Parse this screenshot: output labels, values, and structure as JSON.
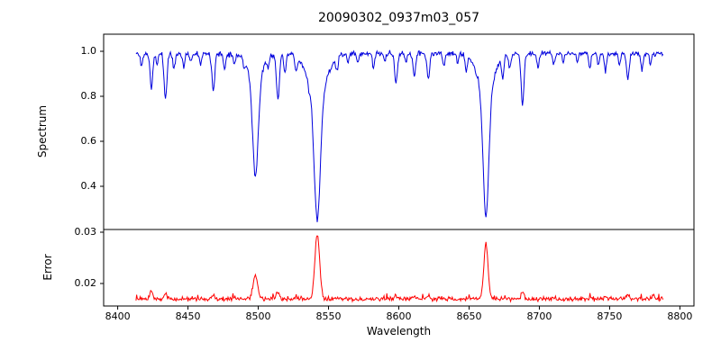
{
  "figure": {
    "background": "#ffffff",
    "frame_color": "#000000"
  },
  "chart_data": {
    "type": "line",
    "title": "20090302_0937m03_057",
    "xlabel": "Wavelength",
    "x_axis": {
      "lim": [
        8390,
        8810
      ],
      "ticks": [
        8400,
        8450,
        8500,
        8550,
        8600,
        8650,
        8700,
        8750,
        8800
      ],
      "tick_labels": [
        "8400",
        "8450",
        "8500",
        "8550",
        "8600",
        "8650",
        "8700",
        "8750",
        "8800"
      ]
    },
    "x_range": [
      8413,
      8788
    ],
    "x_step": 0.5,
    "features_format": [
      "center_wavelength",
      "amplitude",
      "sigma"
    ],
    "panels": [
      {
        "id": "spectrum",
        "ylabel": "Spectrum",
        "color": "#0000dd",
        "ylim": [
          0.208,
          1.076
        ],
        "yticks": [
          0.4,
          0.6,
          0.8,
          1.0
        ],
        "ytick_labels": [
          "0.4",
          "0.6",
          "0.8",
          "1.0"
        ],
        "base": 0.99,
        "noise": 0.01,
        "seed": 11,
        "spike_prob": 0,
        "spike_amp": 0,
        "features": [
          [
            8417,
            -0.055,
            0.8
          ],
          [
            8424,
            -0.15,
            1.0
          ],
          [
            8428,
            -0.05,
            0.7
          ],
          [
            8434,
            -0.2,
            1.0
          ],
          [
            8440,
            -0.07,
            0.8
          ],
          [
            8447,
            -0.06,
            0.8
          ],
          [
            8452,
            -0.04,
            0.7
          ],
          [
            8459,
            -0.04,
            0.7
          ],
          [
            8468,
            -0.16,
            1.0
          ],
          [
            8476,
            -0.07,
            0.8
          ],
          [
            8483,
            -0.05,
            0.7
          ],
          [
            8490,
            -0.04,
            0.7
          ],
          [
            8498,
            -0.44,
            2.0
          ],
          [
            8498,
            -0.105,
            5.0
          ],
          [
            8507,
            -0.05,
            0.7
          ],
          [
            8514,
            -0.21,
            1.0
          ],
          [
            8519,
            -0.09,
            0.8
          ],
          [
            8527,
            -0.07,
            0.8
          ],
          [
            8536,
            -0.04,
            0.7
          ],
          [
            8542,
            -0.57,
            2.2
          ],
          [
            8542,
            -0.17,
            7.0
          ],
          [
            8556,
            -0.05,
            0.8
          ],
          [
            8564,
            -0.04,
            0.7
          ],
          [
            8571,
            -0.04,
            0.7
          ],
          [
            8582,
            -0.06,
            0.8
          ],
          [
            8590,
            -0.04,
            0.7
          ],
          [
            8598,
            -0.13,
            1.0
          ],
          [
            8605,
            -0.04,
            0.7
          ],
          [
            8611,
            -0.1,
            0.9
          ],
          [
            8621,
            -0.12,
            0.9
          ],
          [
            8632,
            -0.05,
            0.8
          ],
          [
            8642,
            -0.04,
            0.7
          ],
          [
            8648,
            -0.07,
            0.8
          ],
          [
            8662,
            -0.565,
            2.0
          ],
          [
            8662,
            -0.16,
            6.0
          ],
          [
            8674,
            -0.09,
            0.8
          ],
          [
            8679,
            -0.06,
            0.8
          ],
          [
            8688,
            -0.23,
            1.0
          ],
          [
            8699,
            -0.06,
            0.8
          ],
          [
            8710,
            -0.05,
            0.8
          ],
          [
            8717,
            -0.04,
            0.7
          ],
          [
            8727,
            -0.04,
            0.7
          ],
          [
            8736,
            -0.06,
            0.8
          ],
          [
            8742,
            -0.05,
            0.7
          ],
          [
            8747,
            -0.08,
            0.8
          ],
          [
            8757,
            -0.05,
            0.7
          ],
          [
            8763,
            -0.11,
            0.9
          ],
          [
            8773,
            -0.07,
            0.8
          ],
          [
            8779,
            -0.05,
            0.7
          ]
        ]
      },
      {
        "id": "error",
        "ylabel": "Error",
        "color": "#ff0000",
        "ylim": [
          0.015614,
          0.030526
        ],
        "yticks": [
          0.02,
          0.03
        ],
        "ytick_labels": [
          "0.02",
          "0.03"
        ],
        "base": 0.017,
        "noise": 0.00035,
        "seed": 23,
        "spike_prob": 0.04,
        "spike_amp": 0.0009,
        "features": [
          [
            8424,
            0.0016,
            1.0
          ],
          [
            8434,
            0.0011,
            1.0
          ],
          [
            8468,
            0.0008,
            1.0
          ],
          [
            8498,
            0.0047,
            1.6
          ],
          [
            8514,
            0.0012,
            1.0
          ],
          [
            8542,
            0.0125,
            1.7
          ],
          [
            8598,
            0.0006,
            1.0
          ],
          [
            8611,
            0.0006,
            1.0
          ],
          [
            8621,
            0.0007,
            1.0
          ],
          [
            8662,
            0.0108,
            1.5
          ],
          [
            8688,
            0.0013,
            1.0
          ],
          [
            8747,
            0.0006,
            1.0
          ],
          [
            8763,
            0.0008,
            1.0
          ],
          [
            8781,
            0.0008,
            0.9
          ]
        ]
      }
    ]
  }
}
